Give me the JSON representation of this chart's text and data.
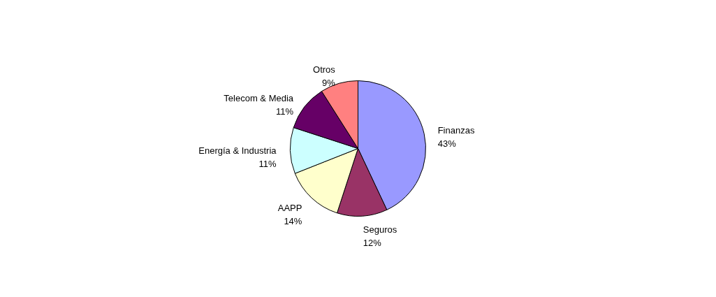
{
  "chart_data": {
    "type": "pie",
    "categories": [
      "Finanzas",
      "Seguros",
      "AAPP",
      "Energía & Industria",
      "Telecom & Media",
      "Otros"
    ],
    "values": [
      43,
      12,
      14,
      11,
      11,
      9
    ],
    "value_labels": [
      "43%",
      "12%",
      "14%",
      "11%",
      "11%",
      "9%"
    ],
    "colors": [
      "#9999ff",
      "#993366",
      "#ffffcc",
      "#ccffff",
      "#660066",
      "#ff8080"
    ],
    "legend": false
  }
}
